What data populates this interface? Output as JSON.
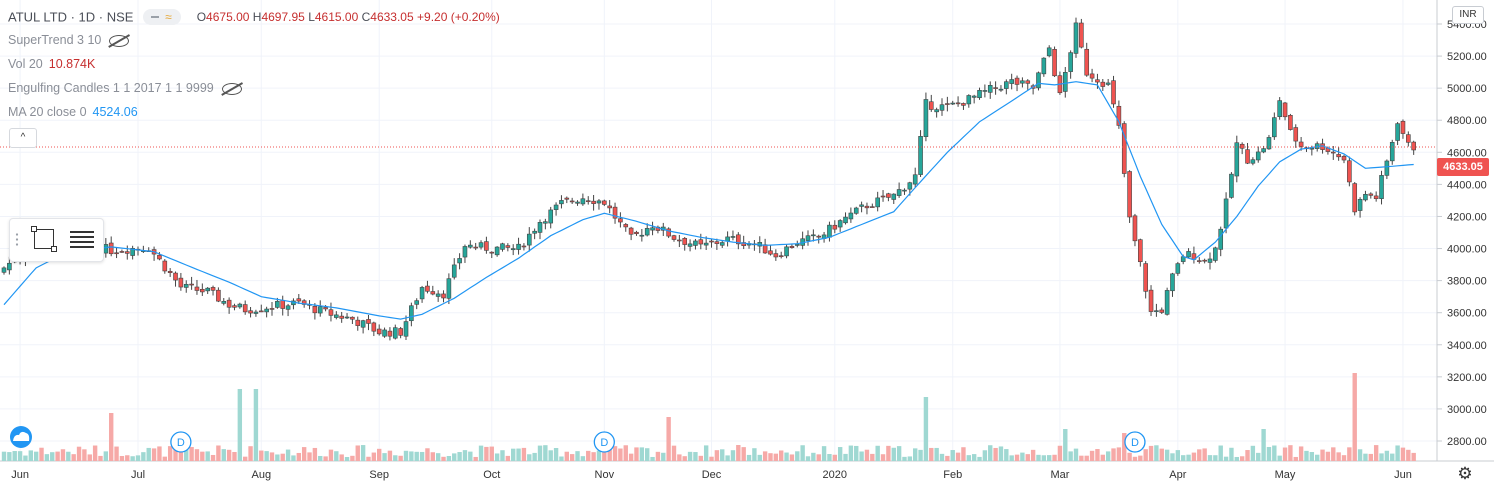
{
  "header": {
    "symbol": "ATUL LTD · 1D · NSE",
    "o_label": "O",
    "o": "4675.00",
    "h_label": "H",
    "h": "4697.95",
    "l_label": "L",
    "l": "4615.00",
    "c_label": "C",
    "c": "4633.05",
    "change": "+9.20 (+0.20%)"
  },
  "indicators": {
    "supertrend": "SuperTrend 3 10",
    "vol_label": "Vol 20",
    "vol_value": "10.874K",
    "engulfing": "Engulfing Candles 1 1 2017 1 1 9999",
    "ma_label": "MA 20 close 0",
    "ma_value": "4524.06"
  },
  "axis": {
    "currency": "INR",
    "last_price_tag": "4633.05"
  },
  "colors": {
    "up": "#26a69a",
    "down": "#ef5350",
    "ma": "#2196f3",
    "grid": "#f0f3fa"
  },
  "icons": {
    "visibility": "eye-off-icon",
    "settings": "gear-icon",
    "rect_tool": "rectangle-icon",
    "lines_tool": "fib-lines-icon"
  },
  "chart_data": {
    "type": "candlestick",
    "ylim": [
      2700,
      5550
    ],
    "y_ticks": [
      2800,
      3000,
      3200,
      3400,
      3600,
      3800,
      4000,
      4200,
      4400,
      4600,
      4800,
      5000,
      5200,
      5400
    ],
    "y_tick_labels": [
      "2800.00",
      "3000.00",
      "3200.00",
      "3400.00",
      "3600.00",
      "3800.00",
      "4000.00",
      "4200.00",
      "4400.00",
      "4600.00",
      "4800.00",
      "5000.00",
      "5200.00",
      "5400.00"
    ],
    "x_ticks": [
      {
        "label": "Jun",
        "bar": 3
      },
      {
        "label": "Jul",
        "bar": 25
      },
      {
        "label": "Aug",
        "bar": 48
      },
      {
        "label": "Sep",
        "bar": 70
      },
      {
        "label": "Oct",
        "bar": 91
      },
      {
        "label": "Nov",
        "bar": 112
      },
      {
        "label": "Dec",
        "bar": 132
      },
      {
        "label": "2020",
        "bar": 155
      },
      {
        "label": "Feb",
        "bar": 177
      },
      {
        "label": "Mar",
        "bar": 197
      },
      {
        "label": "Apr",
        "bar": 219
      },
      {
        "label": "May",
        "bar": 239
      },
      {
        "label": "Jun",
        "bar": 261
      }
    ],
    "dividend_markers": [
      {
        "label": "D",
        "bar": 33
      },
      {
        "label": "D",
        "bar": 112
      },
      {
        "label": "D",
        "bar": 211
      }
    ],
    "close_anchors": [
      [
        0,
        3880
      ],
      [
        5,
        4020
      ],
      [
        12,
        4040
      ],
      [
        20,
        3990
      ],
      [
        27,
        4010
      ],
      [
        33,
        3760
      ],
      [
        38,
        3730
      ],
      [
        42,
        3650
      ],
      [
        45,
        3620
      ],
      [
        50,
        3640
      ],
      [
        55,
        3660
      ],
      [
        60,
        3600
      ],
      [
        65,
        3560
      ],
      [
        70,
        3480
      ],
      [
        74,
        3480
      ],
      [
        78,
        3760
      ],
      [
        82,
        3720
      ],
      [
        86,
        4020
      ],
      [
        91,
        4000
      ],
      [
        96,
        4000
      ],
      [
        100,
        4170
      ],
      [
        104,
        4280
      ],
      [
        108,
        4320
      ],
      [
        112,
        4290
      ],
      [
        117,
        4060
      ],
      [
        121,
        4150
      ],
      [
        125,
        4070
      ],
      [
        130,
        4010
      ],
      [
        135,
        4060
      ],
      [
        140,
        4030
      ],
      [
        144,
        3960
      ],
      [
        148,
        4040
      ],
      [
        152,
        4070
      ],
      [
        157,
        4190
      ],
      [
        161,
        4270
      ],
      [
        166,
        4330
      ],
      [
        170,
        4450
      ],
      [
        172,
        4900
      ],
      [
        176,
        4880
      ],
      [
        180,
        4930
      ],
      [
        184,
        4990
      ],
      [
        188,
        5040
      ],
      [
        192,
        5000
      ],
      [
        195,
        5250
      ],
      [
        197,
        4950
      ],
      [
        200,
        5380
      ],
      [
        202,
        5100
      ],
      [
        206,
        5020
      ],
      [
        208,
        4750
      ],
      [
        210,
        4180
      ],
      [
        212,
        3900
      ],
      [
        214,
        3600
      ],
      [
        216,
        3620
      ],
      [
        218,
        3820
      ],
      [
        220,
        3960
      ],
      [
        222,
        3960
      ],
      [
        224,
        3920
      ],
      [
        226,
        4000
      ],
      [
        228,
        4280
      ],
      [
        230,
        4650
      ],
      [
        232,
        4560
      ],
      [
        234,
        4590
      ],
      [
        236,
        4680
      ],
      [
        238,
        4930
      ],
      [
        240,
        4720
      ],
      [
        242,
        4640
      ],
      [
        244,
        4640
      ],
      [
        246,
        4640
      ],
      [
        248,
        4600
      ],
      [
        250,
        4560
      ],
      [
        252,
        4250
      ],
      [
        254,
        4340
      ],
      [
        256,
        4320
      ],
      [
        258,
        4540
      ],
      [
        260,
        4800
      ],
      [
        262,
        4640
      ],
      [
        263,
        4633
      ]
    ],
    "ma_anchors": [
      [
        0,
        3650
      ],
      [
        6,
        3880
      ],
      [
        12,
        3980
      ],
      [
        20,
        4010
      ],
      [
        28,
        3980
      ],
      [
        36,
        3870
      ],
      [
        42,
        3790
      ],
      [
        48,
        3700
      ],
      [
        55,
        3660
      ],
      [
        62,
        3630
      ],
      [
        70,
        3580
      ],
      [
        74,
        3560
      ],
      [
        78,
        3590
      ],
      [
        84,
        3690
      ],
      [
        90,
        3820
      ],
      [
        96,
        3940
      ],
      [
        102,
        4080
      ],
      [
        108,
        4180
      ],
      [
        112,
        4220
      ],
      [
        118,
        4170
      ],
      [
        124,
        4110
      ],
      [
        130,
        4070
      ],
      [
        136,
        4040
      ],
      [
        142,
        4020
      ],
      [
        148,
        4030
      ],
      [
        154,
        4070
      ],
      [
        160,
        4150
      ],
      [
        166,
        4230
      ],
      [
        170,
        4380
      ],
      [
        176,
        4600
      ],
      [
        182,
        4790
      ],
      [
        188,
        4920
      ],
      [
        193,
        5030
      ],
      [
        196,
        5020
      ],
      [
        200,
        5040
      ],
      [
        204,
        5020
      ],
      [
        208,
        4790
      ],
      [
        212,
        4450
      ],
      [
        216,
        4150
      ],
      [
        220,
        3950
      ],
      [
        222,
        3930
      ],
      [
        226,
        4040
      ],
      [
        230,
        4200
      ],
      [
        234,
        4390
      ],
      [
        238,
        4540
      ],
      [
        242,
        4620
      ],
      [
        246,
        4640
      ],
      [
        250,
        4590
      ],
      [
        254,
        4500
      ],
      [
        258,
        4510
      ],
      [
        263,
        4524
      ]
    ],
    "volume_spikes": [
      [
        20,
        6.0
      ],
      [
        44,
        9.0
      ],
      [
        47,
        9.0
      ],
      [
        124,
        5.5
      ],
      [
        137,
        2.0
      ],
      [
        172,
        8.0
      ],
      [
        198,
        4.0
      ],
      [
        209,
        3.5
      ],
      [
        235,
        4.0
      ],
      [
        252,
        11.0
      ]
    ]
  }
}
